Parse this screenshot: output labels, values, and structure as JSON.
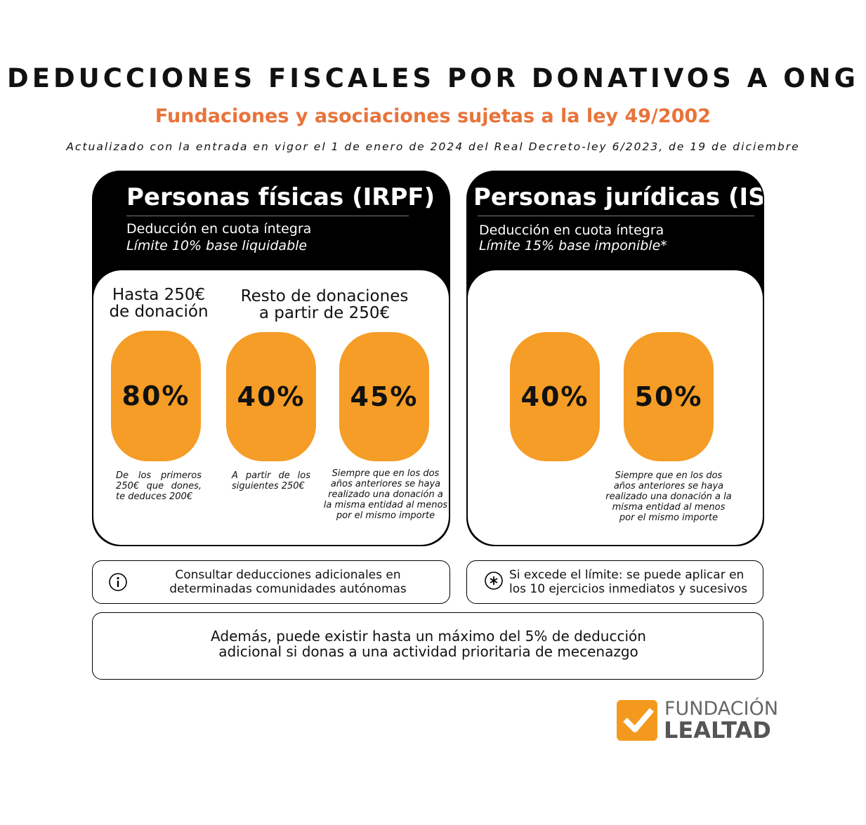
{
  "header": {
    "title": "DEDUCCIONES FISCALES POR DONATIVOS A ONG",
    "subtitle": "Fundaciones y asociaciones sujetas a la ley 49/2002",
    "note": "Actualizado con la entrada en vigor el 1 de enero de 2024 del Real Decreto-ley 6/2023, de 19 de diciembre"
  },
  "panels": [
    {
      "title": "Personas físicas (IRPF)",
      "line1": "Deducción en cuota íntegra",
      "line2": "Límite 10% base liquidable",
      "headings": [
        [
          "Hasta 250€",
          "de donación"
        ],
        [
          "Resto de donaciones",
          "a partir de 250€"
        ]
      ],
      "rates": [
        {
          "value": "80%",
          "note": "De los primeros 250€ que dones, te deduces 200€"
        },
        {
          "value": "40%",
          "note": "A partir de los siguientes 250€"
        },
        {
          "value": "45%",
          "note": "Siempre que en los dos años anteriores se haya realizado una donación a la misma entidad al menos por el mismo importe"
        }
      ]
    },
    {
      "title": "Personas jurídicas (IS)",
      "line1": "Deducción en cuota íntegra",
      "line2": "Límite 15% base imponible*",
      "rates": [
        {
          "value": "40%"
        },
        {
          "value": "50%",
          "note": "Siempre que en los dos años anteriores se haya realizado una donación a la misma entidad al menos por el mismo importe"
        }
      ]
    }
  ],
  "notes": [
    "Consultar deducciones adicionales en determinadas comunidades autónomas",
    "Si excede el límite: se puede aplicar en los 10 ejercicios inmediatos y sucesivos"
  ],
  "footer": "Además, puede existir hasta un máximo del 5% de deducción adicional si donas a una actividad prioritaria de mecenazgo",
  "logo": {
    "line1": "FUNDACIÓN",
    "line2": "LEALTAD"
  }
}
